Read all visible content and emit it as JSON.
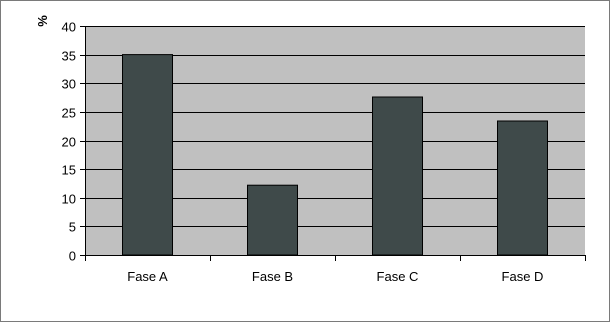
{
  "chart_data": {
    "type": "bar",
    "title": "",
    "xlabel": "",
    "ylabel": "%",
    "categories": [
      "Fase A",
      "Fase B",
      "Fase C",
      "Fase D"
    ],
    "values": [
      35,
      12.2,
      27.6,
      23.4
    ],
    "ylim": [
      0,
      40
    ],
    "yticks": [
      "0",
      "5",
      "10",
      "15",
      "20",
      "25",
      "30",
      "35",
      "40"
    ],
    "grid": true,
    "legend": "none",
    "colors": {
      "bar": "#3f4a4a",
      "plot_background": "#c0c0c0",
      "gridline": "#000000"
    }
  }
}
